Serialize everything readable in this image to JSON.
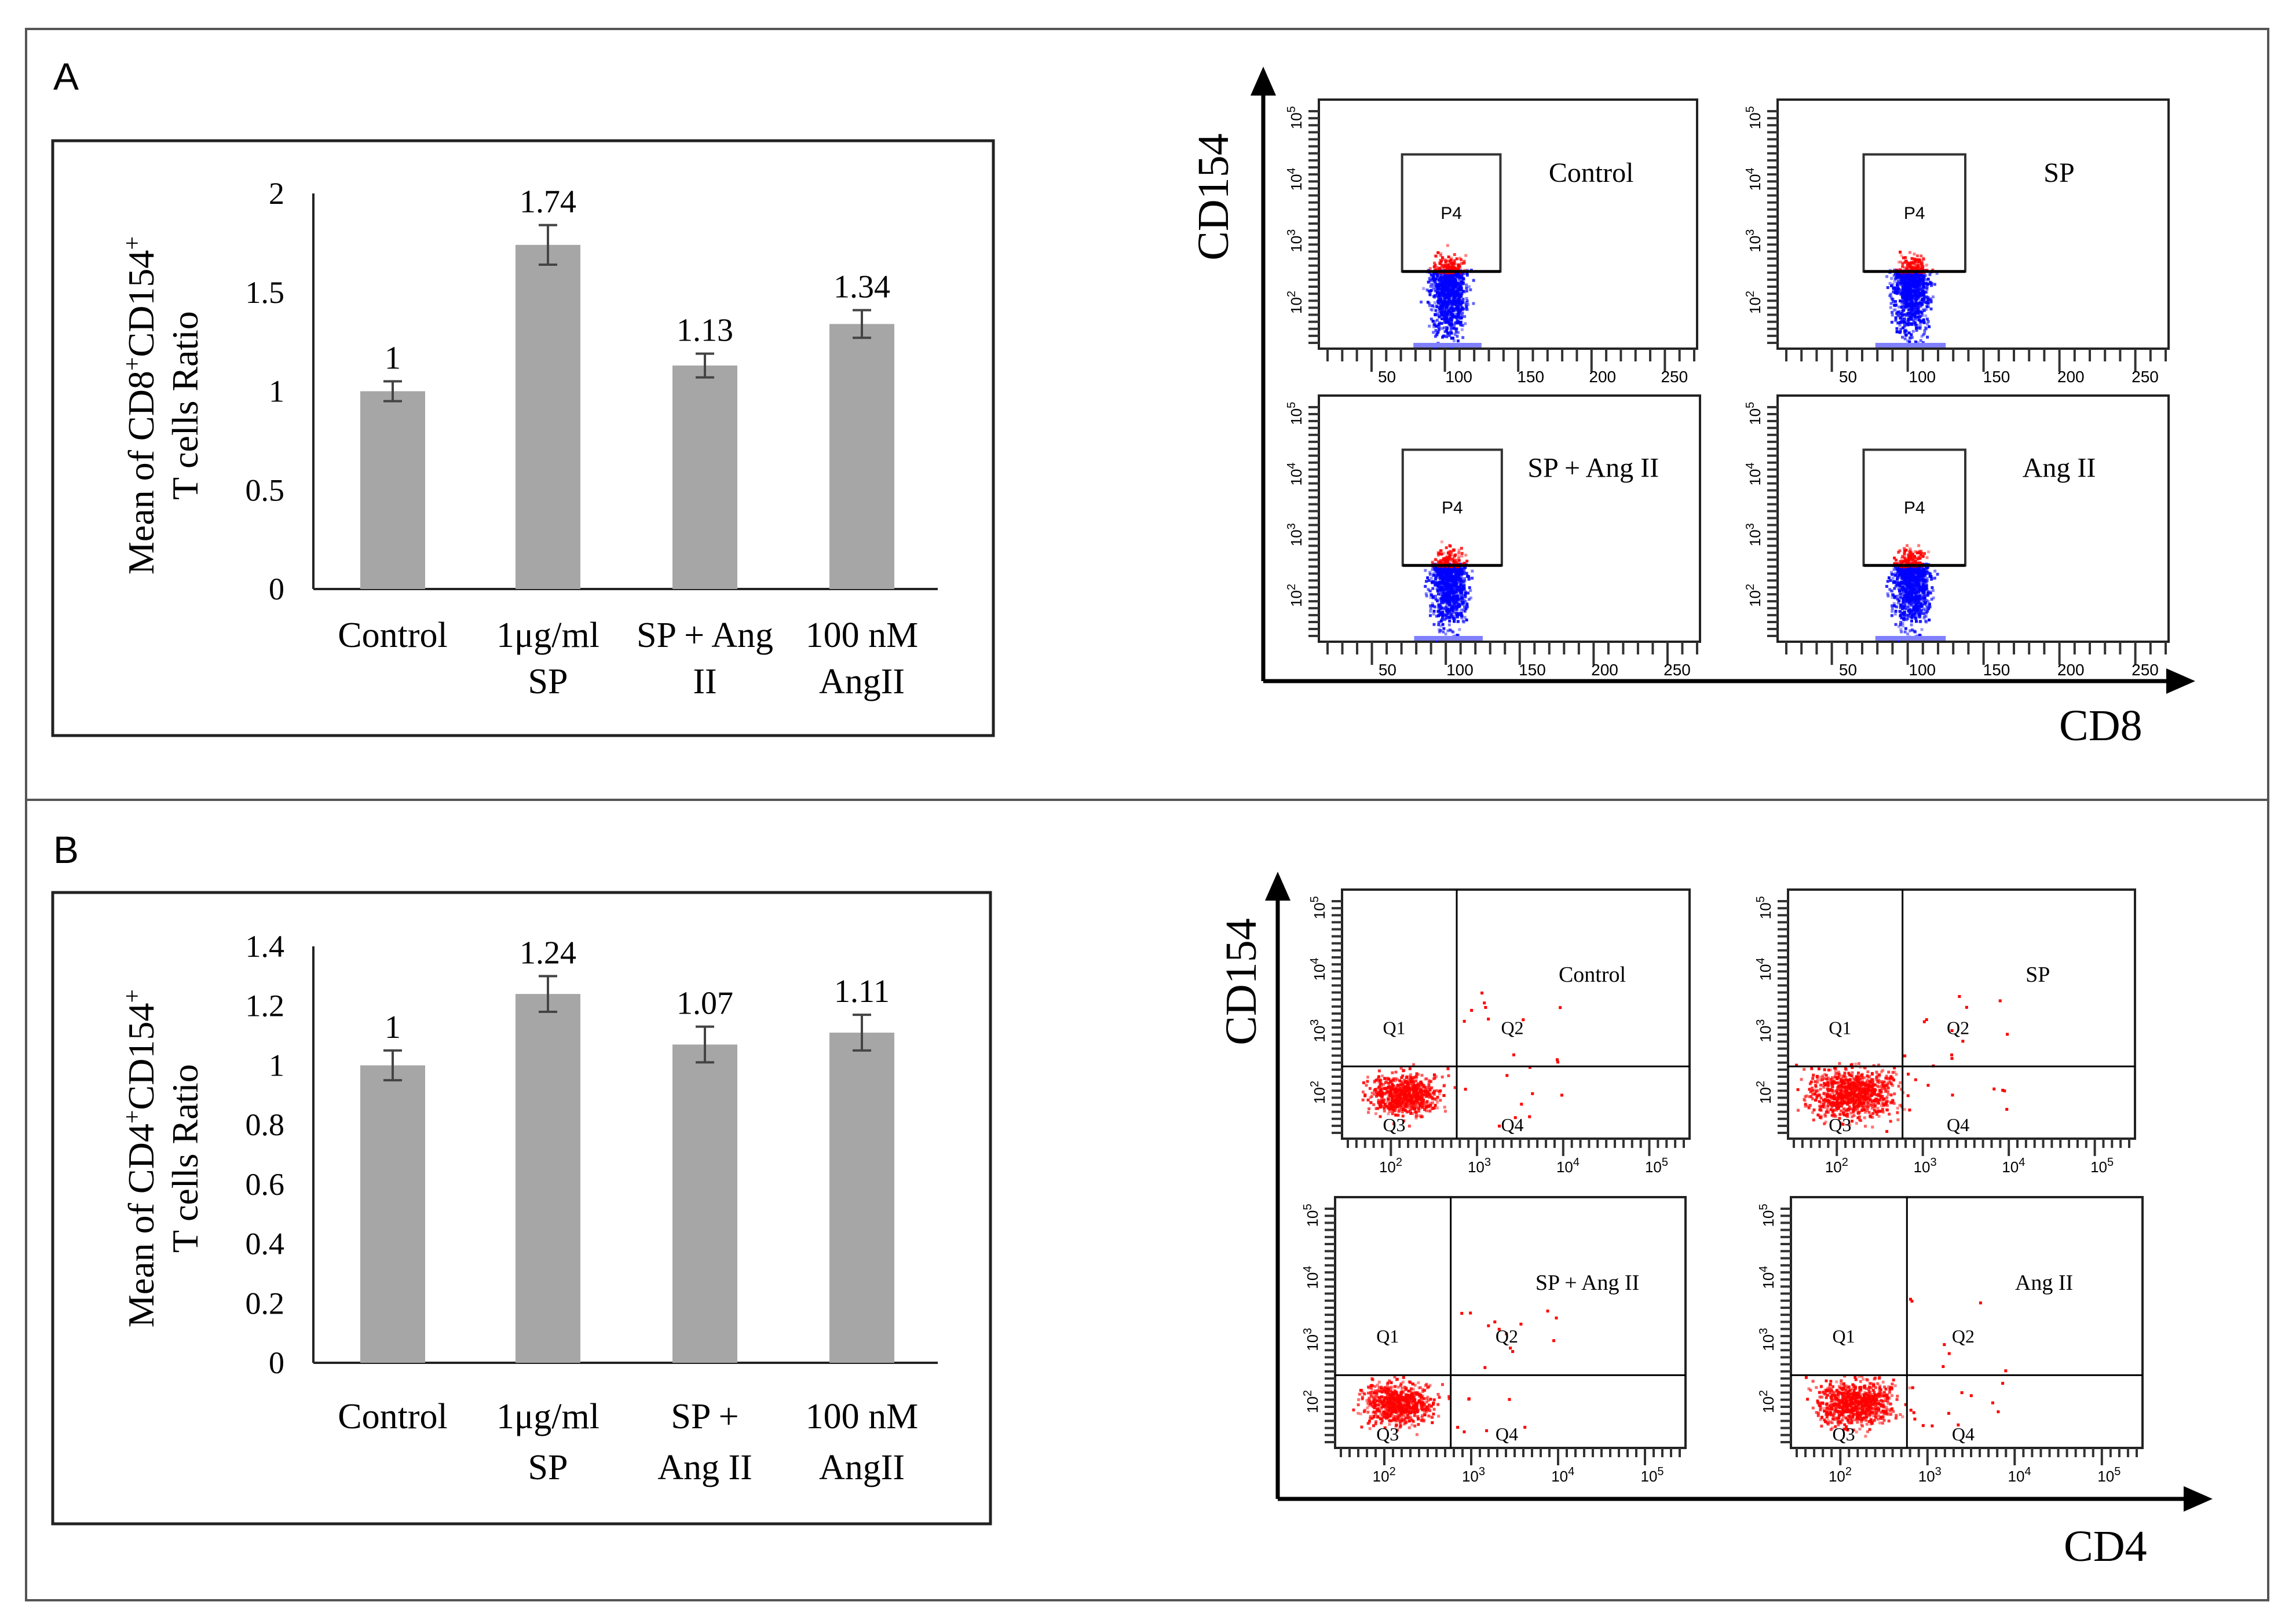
{
  "panels": {
    "a_label": "A",
    "b_label": "B"
  },
  "chart_data": [
    {
      "type": "bar",
      "panel": "A",
      "title": "",
      "ylabel_line1": "Mean of CD8",
      "ylabel_sup1": "+",
      "ylabel_mid": "CD154",
      "ylabel_sup2": "+",
      "ylabel_line2": "T cells Ratio",
      "xlabel": "",
      "categories": [
        [
          "Control"
        ],
        [
          "1μg/ml",
          "SP"
        ],
        [
          "SP + Ang",
          "II"
        ],
        [
          "100 nM",
          "AngII"
        ]
      ],
      "values": [
        1,
        1.74,
        1.13,
        1.34
      ],
      "value_labels": [
        "1",
        "1.74",
        "1.13",
        "1.34"
      ],
      "errors": [
        0.05,
        0.1,
        0.06,
        0.07
      ],
      "ylim": [
        0,
        2
      ],
      "yticks": [
        "0",
        "0.5",
        "1",
        "1.5",
        "2"
      ],
      "ytick_values": [
        0,
        0.5,
        1,
        1.5,
        2
      ],
      "bar_color": "#a6a6a6"
    },
    {
      "type": "bar",
      "panel": "B",
      "title": "",
      "ylabel_line1": "Mean of CD4",
      "ylabel_sup1": "+",
      "ylabel_mid": "CD154",
      "ylabel_sup2": "+",
      "ylabel_line2": "T cells Ratio",
      "xlabel": "",
      "categories": [
        [
          "Control"
        ],
        [
          "1μg/ml",
          "SP"
        ],
        [
          "SP +",
          "Ang II"
        ],
        [
          "100 nM",
          "AngII"
        ]
      ],
      "values": [
        1,
        1.24,
        1.07,
        1.11
      ],
      "value_labels": [
        "1",
        "1.24",
        "1.07",
        "1.11"
      ],
      "errors": [
        0.05,
        0.06,
        0.06,
        0.06
      ],
      "ylim": [
        0,
        1.4
      ],
      "yticks": [
        "0",
        "0.2",
        "0.4",
        "0.6",
        "0.8",
        "1",
        "1.2",
        "1.4"
      ],
      "ytick_values": [
        0,
        0.2,
        0.4,
        0.6,
        0.8,
        1,
        1.2,
        1.4
      ],
      "bar_color": "#a6a6a6"
    },
    {
      "type": "scatter",
      "panel": "A",
      "xlabel": "CD8",
      "ylabel": "CD154",
      "plots": [
        {
          "title": "Control",
          "gate": "P4"
        },
        {
          "title": "SP",
          "gate": "P4"
        },
        {
          "title": "SP + Ang II",
          "gate": "P4"
        },
        {
          "title": "Ang II",
          "gate": "P4"
        }
      ],
      "xticks": [
        "50",
        "100",
        "150",
        "200",
        "250"
      ],
      "yticks": [
        "2",
        "3",
        "4",
        "5"
      ],
      "ytick_base": "10",
      "colors": {
        "gated": "#ff0000",
        "ungated": "#0000ff"
      }
    },
    {
      "type": "scatter",
      "panel": "B",
      "xlabel": "CD4",
      "ylabel": "CD154",
      "plots": [
        {
          "title": "Control",
          "quadrants": [
            "Q1",
            "Q2",
            "Q3",
            "Q4"
          ]
        },
        {
          "title": "SP",
          "quadrants": [
            "Q1",
            "Q2",
            "Q3",
            "Q4"
          ]
        },
        {
          "title": "SP + Ang II",
          "quadrants": [
            "Q1",
            "Q2",
            "Q3",
            "Q4"
          ]
        },
        {
          "title": "Ang II",
          "quadrants": [
            "Q1",
            "Q2",
            "Q3",
            "Q4"
          ]
        }
      ],
      "xticks": [
        "2",
        "3",
        "4",
        "5"
      ],
      "xtick_base": "10",
      "yticks": [
        "2",
        "3",
        "4",
        "5"
      ],
      "ytick_base": "10",
      "colors": {
        "dots": "#ff0000"
      }
    }
  ]
}
